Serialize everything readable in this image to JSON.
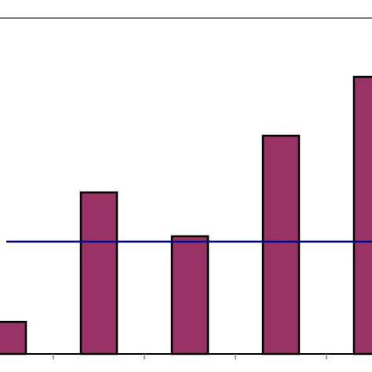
{
  "chart_data": {
    "type": "bar",
    "title": "",
    "xlabel": "",
    "ylabel": "",
    "categories": [
      "",
      "",
      "",
      "",
      ""
    ],
    "values": [
      0.3,
      1.51,
      1.1,
      2.04,
      2.59
    ],
    "ylim": [
      0,
      3.14
    ],
    "reference_line": {
      "value": 1.05
    },
    "grid": false,
    "legend": "none",
    "colors": {
      "bar_fill": "#993366",
      "bar_stroke": "#000000",
      "reference_line": "#000080",
      "frame": "#808080",
      "axis": "#000000"
    }
  }
}
